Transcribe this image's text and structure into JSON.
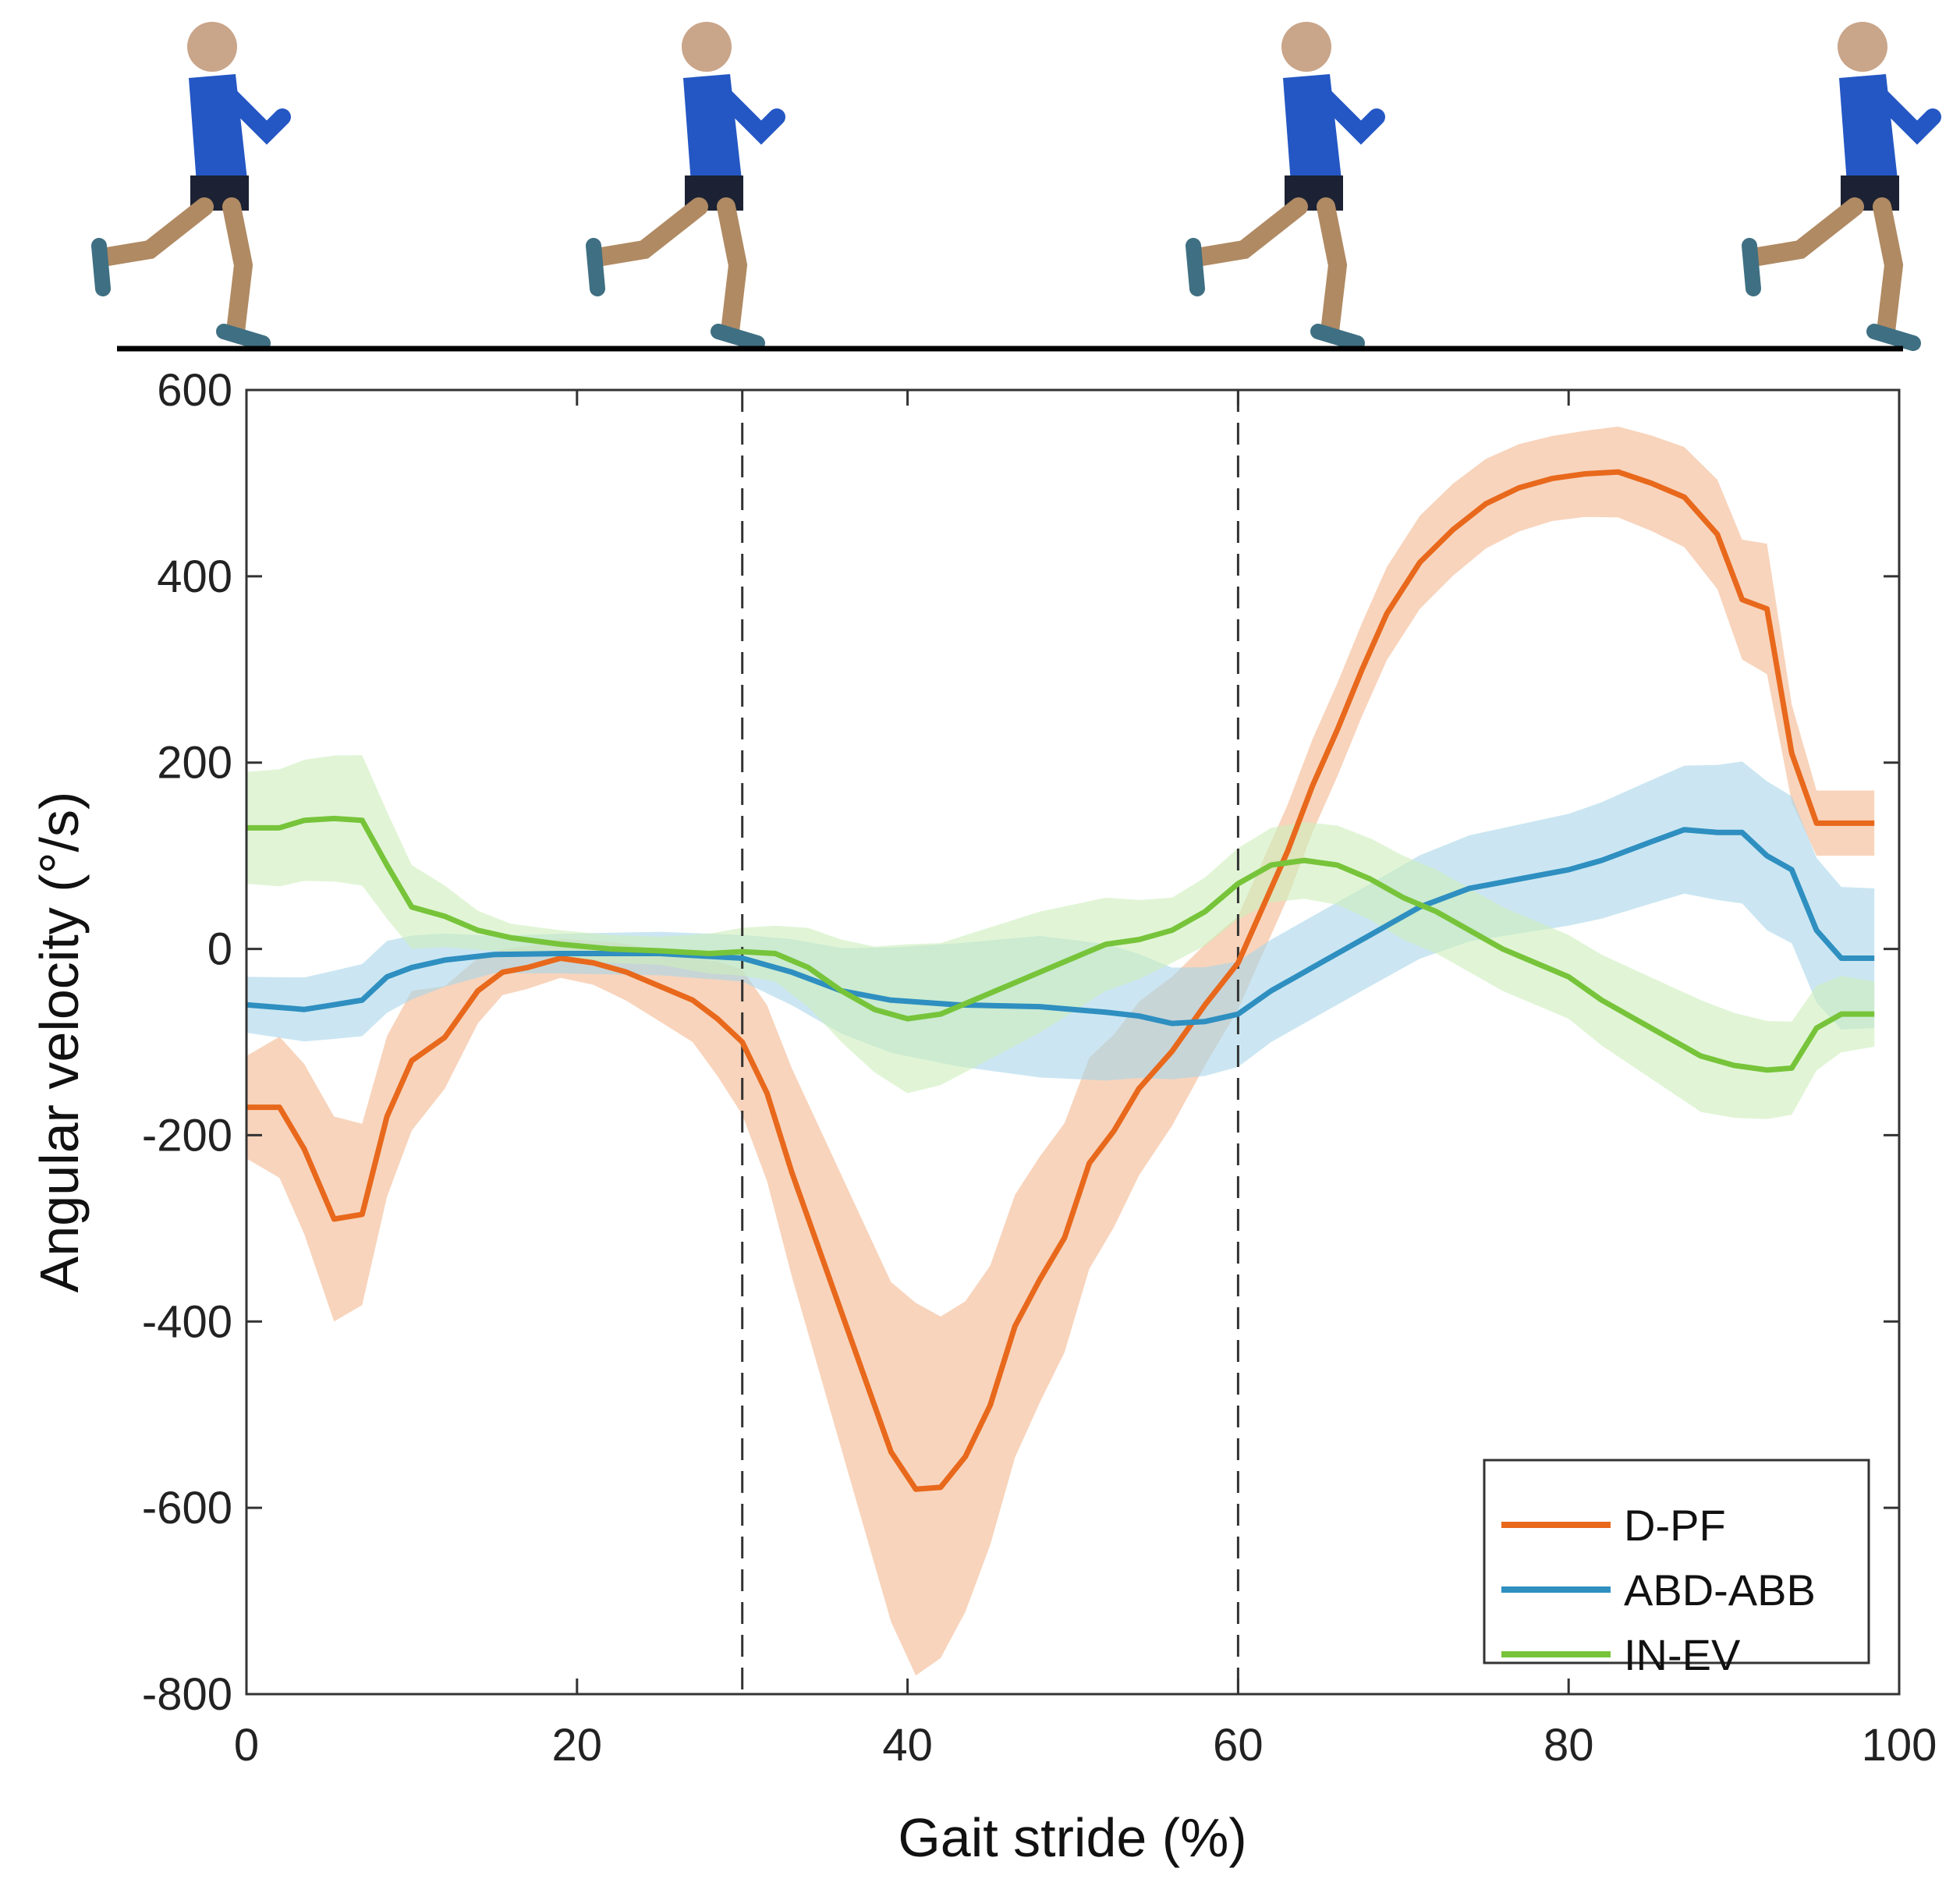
{
  "chart_data": {
    "type": "line",
    "xlabel": "Gait stride (%)",
    "ylabel": "Angular velocity (°/s)",
    "xlim": [
      0,
      100
    ],
    "ylim": [
      -800,
      600
    ],
    "xticks": [
      0,
      20,
      40,
      60,
      80,
      100
    ],
    "yticks": [
      600,
      400,
      200,
      0,
      -200,
      -400,
      -600,
      -800
    ],
    "vlines": [
      30,
      60
    ],
    "legend_position": "bottom-right",
    "grid": false,
    "series": [
      {
        "name": "D-PF",
        "color": "#e8681c",
        "band_color": "#f4b88f",
        "points": [
          [
            0,
            -170
          ],
          [
            2,
            -170
          ],
          [
            3.5,
            -215
          ],
          [
            5.3,
            -290
          ],
          [
            7,
            -285
          ],
          [
            8.5,
            -180
          ],
          [
            10,
            -120
          ],
          [
            12,
            -95
          ],
          [
            14,
            -45
          ],
          [
            15.5,
            -25
          ],
          [
            17,
            -20
          ],
          [
            19,
            -10
          ],
          [
            21,
            -15
          ],
          [
            23,
            -25
          ],
          [
            25,
            -40
          ],
          [
            27,
            -55
          ],
          [
            28.5,
            -75
          ],
          [
            30,
            -100
          ],
          [
            31.5,
            -155
          ],
          [
            33,
            -240
          ],
          [
            35,
            -340
          ],
          [
            37,
            -440
          ],
          [
            39,
            -540
          ],
          [
            40.5,
            -580
          ],
          [
            42,
            -578
          ],
          [
            43.5,
            -545
          ],
          [
            45,
            -490
          ],
          [
            46.5,
            -405
          ],
          [
            48,
            -355
          ],
          [
            49.5,
            -310
          ],
          [
            51,
            -230
          ],
          [
            52.5,
            -195
          ],
          [
            54,
            -150
          ],
          [
            56,
            -110
          ],
          [
            58,
            -60
          ],
          [
            60,
            -15
          ],
          [
            61.5,
            45
          ],
          [
            63,
            105
          ],
          [
            64.5,
            175
          ],
          [
            66,
            235
          ],
          [
            67.5,
            300
          ],
          [
            69,
            360
          ],
          [
            71,
            415
          ],
          [
            73,
            450
          ],
          [
            75,
            478
          ],
          [
            77,
            495
          ],
          [
            79,
            505
          ],
          [
            81,
            510
          ],
          [
            83,
            512
          ],
          [
            85,
            500
          ],
          [
            87,
            485
          ],
          [
            89,
            445
          ],
          [
            90.5,
            375
          ],
          [
            92,
            365
          ],
          [
            93.5,
            210
          ],
          [
            95,
            135
          ],
          [
            98.5,
            135
          ]
        ],
        "band_halfwidth": [
          [
            0,
            55
          ],
          [
            5.3,
            110
          ],
          [
            10,
            75
          ],
          [
            15,
            25
          ],
          [
            20,
            20
          ],
          [
            27,
            45
          ],
          [
            32,
            100
          ],
          [
            40.5,
            200
          ],
          [
            45,
            150
          ],
          [
            50,
            120
          ],
          [
            56,
            80
          ],
          [
            60,
            50
          ],
          [
            66,
            50
          ],
          [
            72,
            50
          ],
          [
            80,
            45
          ],
          [
            88,
            55
          ],
          [
            92,
            70
          ],
          [
            95,
            35
          ],
          [
            98.5,
            35
          ]
        ]
      },
      {
        "name": "ABD-ABB",
        "color": "#2e8fc0",
        "band_color": "#a9d6ea",
        "points": [
          [
            0,
            -60
          ],
          [
            3.5,
            -65
          ],
          [
            5.3,
            -60
          ],
          [
            7,
            -55
          ],
          [
            8.5,
            -30
          ],
          [
            10,
            -20
          ],
          [
            12,
            -12
          ],
          [
            15,
            -6
          ],
          [
            19,
            -5
          ],
          [
            25,
            -5
          ],
          [
            30,
            -10
          ],
          [
            33,
            -25
          ],
          [
            36,
            -45
          ],
          [
            39,
            -55
          ],
          [
            43,
            -60
          ],
          [
            48,
            -62
          ],
          [
            52,
            -68
          ],
          [
            54,
            -72
          ],
          [
            56,
            -80
          ],
          [
            58,
            -78
          ],
          [
            60,
            -70
          ],
          [
            62,
            -45
          ],
          [
            65,
            -15
          ],
          [
            68,
            15
          ],
          [
            71,
            45
          ],
          [
            74,
            65
          ],
          [
            77,
            75
          ],
          [
            80,
            85
          ],
          [
            82,
            95
          ],
          [
            85,
            115
          ],
          [
            87,
            128
          ],
          [
            89,
            125
          ],
          [
            90.5,
            125
          ],
          [
            92,
            100
          ],
          [
            93.5,
            85
          ],
          [
            95,
            20
          ],
          [
            96.5,
            -10
          ],
          [
            98.5,
            -10
          ]
        ],
        "band_halfwidth": [
          [
            0,
            30
          ],
          [
            8,
            40
          ],
          [
            15,
            20
          ],
          [
            30,
            25
          ],
          [
            40,
            60
          ],
          [
            50,
            80
          ],
          [
            56,
            60
          ],
          [
            62,
            55
          ],
          [
            70,
            55
          ],
          [
            80,
            60
          ],
          [
            88,
            70
          ],
          [
            92,
            80
          ],
          [
            98.5,
            75
          ]
        ]
      },
      {
        "name": "IN-EV",
        "color": "#77c43a",
        "band_color": "#cdeebb",
        "points": [
          [
            0,
            130
          ],
          [
            2,
            130
          ],
          [
            3.5,
            138
          ],
          [
            5.3,
            140
          ],
          [
            7,
            138
          ],
          [
            8.5,
            90
          ],
          [
            10,
            45
          ],
          [
            12,
            35
          ],
          [
            14,
            20
          ],
          [
            16,
            12
          ],
          [
            19,
            5
          ],
          [
            22,
            0
          ],
          [
            25,
            -2
          ],
          [
            28,
            -5
          ],
          [
            30,
            -3
          ],
          [
            32,
            -5
          ],
          [
            34,
            -20
          ],
          [
            36,
            -45
          ],
          [
            38,
            -65
          ],
          [
            40,
            -75
          ],
          [
            42,
            -70
          ],
          [
            44,
            -55
          ],
          [
            46,
            -40
          ],
          [
            48,
            -25
          ],
          [
            50,
            -10
          ],
          [
            52,
            5
          ],
          [
            54,
            10
          ],
          [
            56,
            20
          ],
          [
            58,
            40
          ],
          [
            60,
            70
          ],
          [
            62,
            90
          ],
          [
            64,
            95
          ],
          [
            66,
            90
          ],
          [
            68,
            75
          ],
          [
            70,
            55
          ],
          [
            72,
            40
          ],
          [
            74,
            20
          ],
          [
            76,
            0
          ],
          [
            78,
            -15
          ],
          [
            80,
            -30
          ],
          [
            82,
            -55
          ],
          [
            84,
            -75
          ],
          [
            86,
            -95
          ],
          [
            88,
            -115
          ],
          [
            90,
            -125
          ],
          [
            92,
            -130
          ],
          [
            93.5,
            -128
          ],
          [
            95,
            -85
          ],
          [
            96.5,
            -70
          ],
          [
            98.5,
            -70
          ]
        ],
        "band_halfwidth": [
          [
            0,
            60
          ],
          [
            7,
            70
          ],
          [
            10,
            45
          ],
          [
            15,
            15
          ],
          [
            25,
            15
          ],
          [
            32,
            30
          ],
          [
            40,
            80
          ],
          [
            48,
            65
          ],
          [
            56,
            35
          ],
          [
            62,
            40
          ],
          [
            70,
            45
          ],
          [
            80,
            45
          ],
          [
            88,
            60
          ],
          [
            93.5,
            50
          ],
          [
            98.5,
            35
          ]
        ]
      }
    ]
  }
}
